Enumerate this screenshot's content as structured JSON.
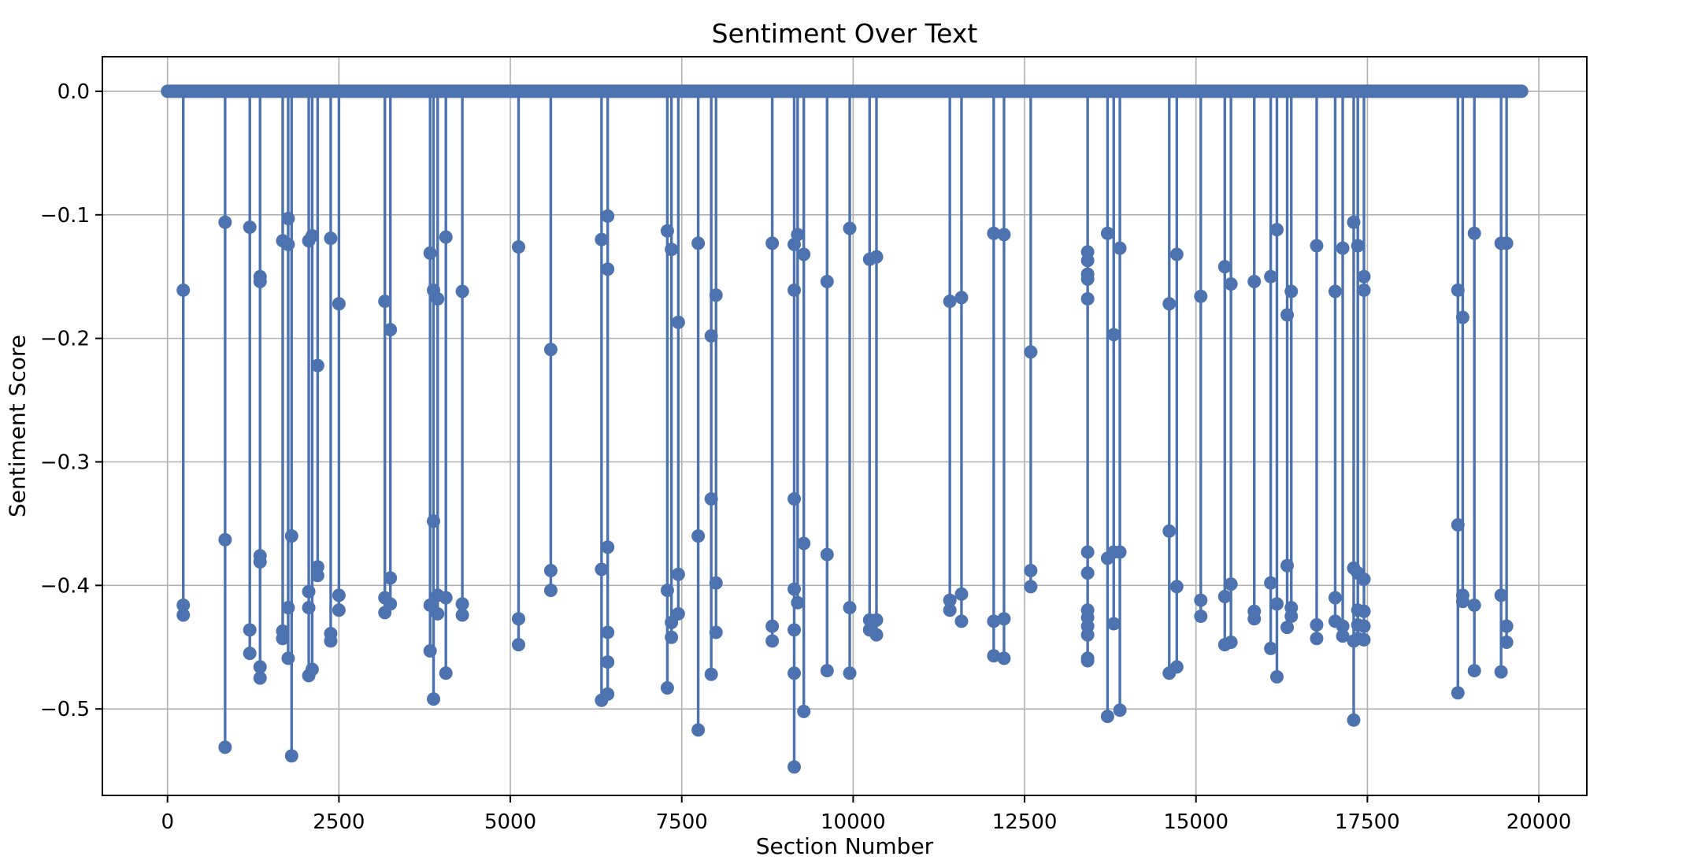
{
  "chart_data": {
    "type": "stem",
    "title": "Sentiment Over Text",
    "xlabel": "Section Number",
    "ylabel": "Sentiment Score",
    "xlim": [
      -950,
      20700
    ],
    "ylim": [
      -0.57,
      0.028
    ],
    "x_ticks": [
      0,
      2500,
      5000,
      7500,
      10000,
      12500,
      15000,
      17500,
      20000
    ],
    "x_tick_labels": [
      "0",
      "2500",
      "5000",
      "7500",
      "10000",
      "12500",
      "15000",
      "17500",
      "20000"
    ],
    "y_ticks": [
      0.0,
      -0.1,
      -0.2,
      -0.3,
      -0.4,
      -0.5
    ],
    "y_tick_labels": [
      "0.0",
      "−0.1",
      "−0.2",
      "−0.3",
      "−0.4",
      "−0.5"
    ],
    "grid": true,
    "color": "#4c72b0",
    "baseline": {
      "x_start": 0,
      "x_end": 19750,
      "value": 0.0
    },
    "stems": [
      {
        "x": 230,
        "values": [
          -0.161,
          -0.416,
          -0.424
        ]
      },
      {
        "x": 840,
        "values": [
          -0.106,
          -0.363,
          -0.531
        ]
      },
      {
        "x": 1200,
        "values": [
          -0.11,
          -0.436,
          -0.455
        ]
      },
      {
        "x": 1350,
        "values": [
          -0.15,
          -0.154,
          -0.376,
          -0.381,
          -0.466,
          -0.475
        ]
      },
      {
        "x": 1680,
        "values": [
          -0.121,
          -0.437,
          -0.443
        ]
      },
      {
        "x": 1760,
        "values": [
          -0.103,
          -0.124,
          -0.418,
          -0.459
        ]
      },
      {
        "x": 1810,
        "values": [
          -0.36,
          -0.538
        ]
      },
      {
        "x": 2060,
        "values": [
          -0.121,
          -0.405,
          -0.418,
          -0.473
        ]
      },
      {
        "x": 2110,
        "values": [
          -0.117,
          -0.468
        ]
      },
      {
        "x": 2190,
        "values": [
          -0.222,
          -0.385,
          -0.392
        ]
      },
      {
        "x": 2380,
        "values": [
          -0.119,
          -0.439,
          -0.445
        ]
      },
      {
        "x": 2500,
        "values": [
          -0.172,
          -0.408,
          -0.42
        ]
      },
      {
        "x": 3170,
        "values": [
          -0.17,
          -0.41,
          -0.422
        ]
      },
      {
        "x": 3250,
        "values": [
          -0.193,
          -0.394,
          -0.415
        ]
      },
      {
        "x": 3830,
        "values": [
          -0.131,
          -0.416,
          -0.453
        ]
      },
      {
        "x": 3880,
        "values": [
          -0.161,
          -0.348,
          -0.492
        ]
      },
      {
        "x": 3940,
        "values": [
          -0.168,
          -0.408,
          -0.423
        ]
      },
      {
        "x": 4060,
        "values": [
          -0.118,
          -0.41,
          -0.471
        ]
      },
      {
        "x": 4300,
        "values": [
          -0.162,
          -0.415,
          -0.424
        ]
      },
      {
        "x": 5120,
        "values": [
          -0.126,
          -0.427,
          -0.448
        ]
      },
      {
        "x": 5590,
        "values": [
          -0.209,
          -0.388,
          -0.404
        ]
      },
      {
        "x": 6330,
        "values": [
          -0.12,
          -0.387,
          -0.493
        ]
      },
      {
        "x": 6420,
        "values": [
          -0.101,
          -0.144,
          -0.369,
          -0.438,
          -0.462,
          -0.488
        ]
      },
      {
        "x": 7290,
        "values": [
          -0.113,
          -0.404,
          -0.483
        ]
      },
      {
        "x": 7350,
        "values": [
          -0.128,
          -0.43,
          -0.442
        ]
      },
      {
        "x": 7450,
        "values": [
          -0.187,
          -0.391,
          -0.423
        ]
      },
      {
        "x": 7740,
        "values": [
          -0.123,
          -0.36,
          -0.517
        ]
      },
      {
        "x": 7930,
        "values": [
          -0.198,
          -0.33,
          -0.472
        ]
      },
      {
        "x": 8000,
        "values": [
          -0.165,
          -0.398,
          -0.438
        ]
      },
      {
        "x": 8820,
        "values": [
          -0.123,
          -0.433,
          -0.445
        ]
      },
      {
        "x": 9140,
        "values": [
          -0.124,
          -0.161,
          -0.33,
          -0.403,
          -0.436,
          -0.471,
          -0.547
        ]
      },
      {
        "x": 9190,
        "values": [
          -0.116,
          -0.414
        ]
      },
      {
        "x": 9280,
        "values": [
          -0.132,
          -0.366,
          -0.502
        ]
      },
      {
        "x": 9620,
        "values": [
          -0.154,
          -0.375,
          -0.469
        ]
      },
      {
        "x": 9950,
        "values": [
          -0.111,
          -0.418,
          -0.471
        ]
      },
      {
        "x": 10240,
        "values": [
          -0.136,
          -0.428,
          -0.436
        ]
      },
      {
        "x": 10340,
        "values": [
          -0.134,
          -0.428,
          -0.44
        ]
      },
      {
        "x": 11410,
        "values": [
          -0.17,
          -0.412,
          -0.42
        ]
      },
      {
        "x": 11580,
        "values": [
          -0.167,
          -0.407,
          -0.429
        ]
      },
      {
        "x": 12050,
        "values": [
          -0.115,
          -0.429,
          -0.457
        ]
      },
      {
        "x": 12200,
        "values": [
          -0.116,
          -0.427,
          -0.459
        ]
      },
      {
        "x": 12590,
        "values": [
          -0.211,
          -0.388,
          -0.401
        ]
      },
      {
        "x": 13420,
        "values": [
          -0.13,
          -0.137,
          -0.148,
          -0.152,
          -0.168,
          -0.373,
          -0.39,
          -0.42,
          -0.426,
          -0.433,
          -0.44,
          -0.459,
          -0.461
        ]
      },
      {
        "x": 13710,
        "values": [
          -0.115,
          -0.378,
          -0.506
        ]
      },
      {
        "x": 13800,
        "values": [
          -0.197,
          -0.373,
          -0.431
        ]
      },
      {
        "x": 13890,
        "values": [
          -0.127,
          -0.373,
          -0.501
        ]
      },
      {
        "x": 14610,
        "values": [
          -0.172,
          -0.356,
          -0.471
        ]
      },
      {
        "x": 14720,
        "values": [
          -0.132,
          -0.401,
          -0.466
        ]
      },
      {
        "x": 15070,
        "values": [
          -0.166,
          -0.412,
          -0.425
        ]
      },
      {
        "x": 15420,
        "values": [
          -0.142,
          -0.409,
          -0.448
        ]
      },
      {
        "x": 15510,
        "values": [
          -0.156,
          -0.399,
          -0.446
        ]
      },
      {
        "x": 15850,
        "values": [
          -0.154,
          -0.421,
          -0.427
        ]
      },
      {
        "x": 16090,
        "values": [
          -0.15,
          -0.398,
          -0.451
        ]
      },
      {
        "x": 16180,
        "values": [
          -0.112,
          -0.415,
          -0.474
        ]
      },
      {
        "x": 16330,
        "values": [
          -0.181,
          -0.384,
          -0.434
        ]
      },
      {
        "x": 16390,
        "values": [
          -0.162,
          -0.418,
          -0.425
        ]
      },
      {
        "x": 16760,
        "values": [
          -0.125,
          -0.432,
          -0.443
        ]
      },
      {
        "x": 17030,
        "values": [
          -0.162,
          -0.41,
          -0.429
        ]
      },
      {
        "x": 17140,
        "values": [
          -0.127,
          -0.433,
          -0.441
        ]
      },
      {
        "x": 17300,
        "values": [
          -0.106,
          -0.386,
          -0.445,
          -0.509
        ]
      },
      {
        "x": 17360,
        "values": [
          -0.125,
          -0.39,
          -0.42,
          -0.432,
          -0.443
        ]
      },
      {
        "x": 17450,
        "values": [
          -0.15,
          -0.161,
          -0.395,
          -0.421,
          -0.433,
          -0.444
        ]
      },
      {
        "x": 18820,
        "values": [
          -0.161,
          -0.351,
          -0.487
        ]
      },
      {
        "x": 18890,
        "values": [
          -0.183,
          -0.408,
          -0.413
        ]
      },
      {
        "x": 19060,
        "values": [
          -0.115,
          -0.416,
          -0.469
        ]
      },
      {
        "x": 19450,
        "values": [
          -0.123,
          -0.408,
          -0.47
        ]
      },
      {
        "x": 19530,
        "values": [
          -0.123,
          -0.433,
          -0.446
        ]
      }
    ]
  }
}
